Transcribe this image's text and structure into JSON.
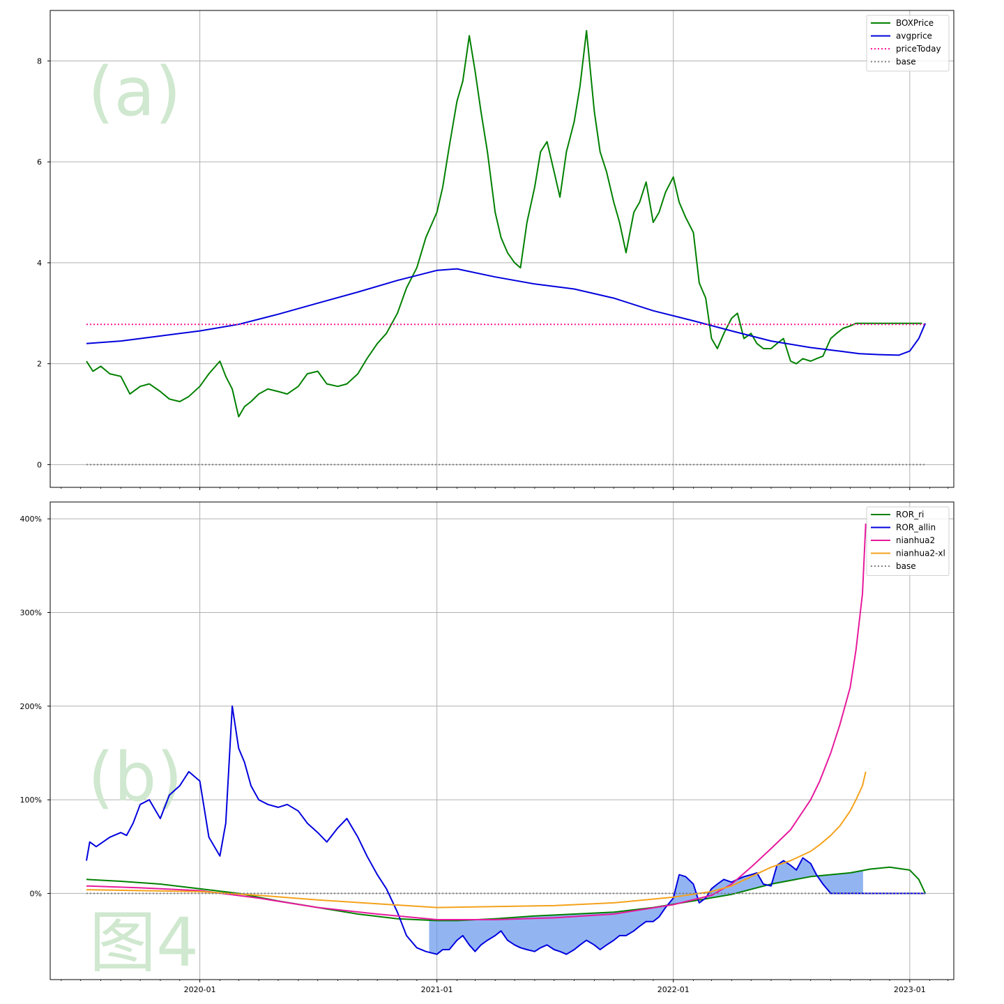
{
  "chart_data": [
    {
      "panel_label": "(a)",
      "type": "line",
      "ylim": [
        -0.45,
        9.0
      ],
      "yticks": [
        0,
        2,
        4,
        6,
        8
      ],
      "grid": true,
      "legend_position": "top-right",
      "series": [
        {
          "name": "BOXPrice",
          "color": "#008000",
          "style": "solid",
          "x": [
            "2019-07-10",
            "2019-07-20",
            "2019-08-01",
            "2019-08-15",
            "2019-09-01",
            "2019-09-15",
            "2019-10-01",
            "2019-10-15",
            "2019-11-01",
            "2019-11-15",
            "2019-12-01",
            "2019-12-15",
            "2020-01-01",
            "2020-01-15",
            "2020-02-01",
            "2020-02-10",
            "2020-02-20",
            "2020-03-01",
            "2020-03-10",
            "2020-03-20",
            "2020-04-01",
            "2020-04-15",
            "2020-05-01",
            "2020-05-15",
            "2020-06-01",
            "2020-06-15",
            "2020-07-01",
            "2020-07-15",
            "2020-08-01",
            "2020-08-15",
            "2020-09-01",
            "2020-09-15",
            "2020-10-01",
            "2020-10-15",
            "2020-11-01",
            "2020-11-15",
            "2020-12-01",
            "2020-12-15",
            "2021-01-01",
            "2021-01-10",
            "2021-01-20",
            "2021-02-01",
            "2021-02-10",
            "2021-02-20",
            "2021-03-01",
            "2021-03-10",
            "2021-03-20",
            "2021-04-01",
            "2021-04-10",
            "2021-04-20",
            "2021-05-01",
            "2021-05-10",
            "2021-05-20",
            "2021-06-01",
            "2021-06-10",
            "2021-06-20",
            "2021-07-01",
            "2021-07-10",
            "2021-07-20",
            "2021-08-01",
            "2021-08-10",
            "2021-08-20",
            "2021-09-01",
            "2021-09-10",
            "2021-09-20",
            "2021-10-01",
            "2021-10-10",
            "2021-10-20",
            "2021-11-01",
            "2021-11-10",
            "2021-11-20",
            "2021-12-01",
            "2021-12-10",
            "2021-12-20",
            "2022-01-01",
            "2022-01-10",
            "2022-01-20",
            "2022-02-01",
            "2022-02-10",
            "2022-02-20",
            "2022-03-01",
            "2022-03-10",
            "2022-03-20",
            "2022-04-01",
            "2022-04-10",
            "2022-04-20",
            "2022-05-01",
            "2022-05-10",
            "2022-05-20",
            "2022-06-01",
            "2022-06-10",
            "2022-06-20",
            "2022-07-01",
            "2022-07-10",
            "2022-07-20",
            "2022-08-01",
            "2022-08-10",
            "2022-08-20",
            "2022-09-01",
            "2022-09-10",
            "2022-09-20",
            "2022-10-01",
            "2022-10-10",
            "2022-10-20",
            "2022-11-01",
            "2022-11-10",
            "2022-11-20",
            "2022-12-01",
            "2022-12-10",
            "2022-12-20",
            "2023-01-01",
            "2023-01-10",
            "2023-01-20"
          ],
          "y": [
            2.05,
            1.85,
            1.95,
            1.8,
            1.75,
            1.4,
            1.55,
            1.6,
            1.45,
            1.3,
            1.25,
            1.35,
            1.55,
            1.8,
            2.05,
            1.75,
            1.5,
            0.95,
            1.15,
            1.25,
            1.4,
            1.5,
            1.45,
            1.4,
            1.55,
            1.8,
            1.85,
            1.6,
            1.55,
            1.6,
            1.8,
            2.1,
            2.4,
            2.6,
            3.0,
            3.5,
            3.9,
            4.5,
            5.0,
            5.5,
            6.3,
            7.2,
            7.6,
            8.5,
            7.8,
            7.0,
            6.2,
            5.0,
            4.5,
            4.2,
            4.0,
            3.9,
            4.8,
            5.5,
            6.2,
            6.4,
            5.8,
            5.3,
            6.2,
            6.8,
            7.5,
            8.6,
            7.0,
            6.2,
            5.8,
            5.2,
            4.8,
            4.2,
            5.0,
            5.2,
            5.6,
            4.8,
            5.0,
            5.4,
            5.7,
            5.2,
            4.9,
            4.6,
            3.6,
            3.3,
            2.5,
            2.3,
            2.6,
            2.9,
            3.0,
            2.5,
            2.6,
            2.4,
            2.3,
            2.3,
            2.4,
            2.5,
            2.05,
            2.0,
            2.1,
            2.05,
            2.1,
            2.15,
            2.5,
            2.6,
            2.7,
            2.75,
            2.8,
            2.8,
            2.8,
            2.8,
            2.8,
            2.8,
            2.8,
            2.8,
            2.8,
            2.8,
            2.8
          ]
        },
        {
          "name": "avgprice",
          "color": "#0000dd",
          "style": "solid",
          "x": [
            "2019-07-10",
            "2019-09-01",
            "2019-11-01",
            "2020-01-01",
            "2020-03-01",
            "2020-05-01",
            "2020-07-01",
            "2020-09-01",
            "2020-11-01",
            "2021-01-01",
            "2021-02-01",
            "2021-04-01",
            "2021-06-01",
            "2021-08-01",
            "2021-10-01",
            "2021-12-01",
            "2022-02-01",
            "2022-04-01",
            "2022-06-01",
            "2022-08-01",
            "2022-09-15",
            "2022-10-15",
            "2022-11-15",
            "2022-12-15",
            "2023-01-01",
            "2023-01-15",
            "2023-01-25"
          ],
          "y": [
            2.4,
            2.45,
            2.55,
            2.65,
            2.78,
            2.98,
            3.2,
            3.42,
            3.65,
            3.85,
            3.88,
            3.72,
            3.58,
            3.48,
            3.3,
            3.05,
            2.85,
            2.65,
            2.45,
            2.32,
            2.25,
            2.2,
            2.18,
            2.17,
            2.25,
            2.5,
            2.8
          ]
        },
        {
          "name": "priceToday",
          "color": "#ff1493",
          "style": "dotted",
          "x": [
            "2019-07-10",
            "2023-01-25"
          ],
          "y": [
            2.78,
            2.78
          ]
        },
        {
          "name": "base",
          "color": "#808080",
          "style": "dotted",
          "x": [
            "2019-07-10",
            "2023-01-25"
          ],
          "y": [
            0,
            0
          ]
        }
      ]
    },
    {
      "panel_label": "(b)",
      "type": "line",
      "ylim": [
        -92,
        418
      ],
      "yticks": [
        0,
        100,
        200,
        300,
        400
      ],
      "ytick_labels": [
        "0%",
        "100%",
        "200%",
        "300%",
        "400%"
      ],
      "grid": true,
      "legend_position": "top-right",
      "xticks": [
        "2020-01-01",
        "2021-01-01",
        "2022-01-01",
        "2023-01-01"
      ],
      "xtick_labels": [
        "2020-01",
        "2021-01",
        "2022-01",
        "2023-01"
      ],
      "fill_between": {
        "series_a": "ROR_ri",
        "series_b": "ROR_allin",
        "x_from": "2020-12-20",
        "x_to": "2022-10-25",
        "color": "#6495ed",
        "opacity": 0.7
      },
      "series": [
        {
          "name": "ROR_ri",
          "color": "#008000",
          "style": "solid",
          "x": [
            "2019-07-10",
            "2019-09-01",
            "2019-11-01",
            "2020-01-01",
            "2020-03-01",
            "2020-05-01",
            "2020-07-01",
            "2020-09-01",
            "2020-11-01",
            "2021-01-01",
            "2021-02-01",
            "2021-04-01",
            "2021-06-01",
            "2021-08-01",
            "2021-10-01",
            "2021-12-01",
            "2022-02-01",
            "2022-04-01",
            "2022-06-01",
            "2022-08-01",
            "2022-10-01",
            "2022-11-01",
            "2022-12-01",
            "2023-01-01",
            "2023-01-15",
            "2023-01-25"
          ],
          "y": [
            15,
            13,
            10,
            5,
            0,
            -8,
            -15,
            -22,
            -27,
            -29,
            -29,
            -27,
            -24,
            -22,
            -20,
            -15,
            -8,
            -1,
            10,
            18,
            22,
            26,
            28,
            25,
            15,
            0
          ]
        },
        {
          "name": "ROR_allin",
          "color": "#0000dd",
          "style": "solid",
          "x": [
            "2019-07-10",
            "2019-07-15",
            "2019-07-25",
            "2019-08-15",
            "2019-09-01",
            "2019-09-10",
            "2019-09-20",
            "2019-10-01",
            "2019-10-15",
            "2019-11-01",
            "2019-11-15",
            "2019-12-01",
            "2019-12-15",
            "2020-01-01",
            "2020-01-15",
            "2020-02-01",
            "2020-02-10",
            "2020-02-20",
            "2020-03-01",
            "2020-03-10",
            "2020-03-20",
            "2020-04-01",
            "2020-04-15",
            "2020-05-01",
            "2020-05-15",
            "2020-06-01",
            "2020-06-15",
            "2020-07-01",
            "2020-07-15",
            "2020-08-01",
            "2020-08-15",
            "2020-09-01",
            "2020-09-15",
            "2020-10-01",
            "2020-10-15",
            "2020-11-01",
            "2020-11-15",
            "2020-12-01",
            "2020-12-15",
            "2021-01-01",
            "2021-01-10",
            "2021-01-20",
            "2021-02-01",
            "2021-02-10",
            "2021-02-20",
            "2021-03-01",
            "2021-03-10",
            "2021-03-20",
            "2021-04-01",
            "2021-04-10",
            "2021-04-20",
            "2021-05-01",
            "2021-05-10",
            "2021-05-20",
            "2021-06-01",
            "2021-06-10",
            "2021-06-20",
            "2021-07-01",
            "2021-07-10",
            "2021-07-20",
            "2021-08-01",
            "2021-08-10",
            "2021-08-20",
            "2021-09-01",
            "2021-09-10",
            "2021-09-20",
            "2021-10-01",
            "2021-10-10",
            "2021-10-20",
            "2021-11-01",
            "2021-11-10",
            "2021-11-20",
            "2021-12-01",
            "2021-12-10",
            "2021-12-20",
            "2022-01-01",
            "2022-01-10",
            "2022-01-20",
            "2022-02-01",
            "2022-02-10",
            "2022-02-20",
            "2022-03-01",
            "2022-03-10",
            "2022-03-20",
            "2022-04-01",
            "2022-04-10",
            "2022-04-20",
            "2022-05-01",
            "2022-05-10",
            "2022-05-20",
            "2022-06-01",
            "2022-06-10",
            "2022-06-20",
            "2022-07-01",
            "2022-07-10",
            "2022-07-20",
            "2022-08-01",
            "2022-08-10",
            "2022-08-20",
            "2022-09-01",
            "2022-09-10",
            "2022-09-20",
            "2022-10-01",
            "2022-10-10",
            "2022-10-20",
            "2022-11-01",
            "2022-11-10",
            "2022-11-20",
            "2022-12-01",
            "2022-12-10",
            "2022-12-20",
            "2023-01-01",
            "2023-01-10",
            "2023-01-20",
            "2023-01-25"
          ],
          "y": [
            35,
            55,
            50,
            60,
            65,
            62,
            75,
            95,
            100,
            80,
            105,
            115,
            130,
            120,
            60,
            40,
            75,
            200,
            155,
            140,
            115,
            100,
            95,
            92,
            95,
            88,
            75,
            65,
            55,
            70,
            80,
            60,
            40,
            20,
            5,
            -20,
            -45,
            -58,
            -62,
            -65,
            -60,
            -60,
            -50,
            -45,
            -55,
            -62,
            -55,
            -50,
            -45,
            -40,
            -50,
            -55,
            -58,
            -60,
            -62,
            -58,
            -55,
            -60,
            -62,
            -65,
            -60,
            -55,
            -50,
            -55,
            -60,
            -55,
            -50,
            -45,
            -45,
            -40,
            -35,
            -30,
            -30,
            -25,
            -15,
            -5,
            20,
            18,
            10,
            -10,
            -5,
            5,
            10,
            15,
            12,
            15,
            18,
            20,
            22,
            10,
            8,
            30,
            35,
            30,
            25,
            38,
            32,
            20,
            10,
            0,
            0,
            0,
            0,
            0,
            0,
            0,
            0,
            0,
            0,
            0,
            0,
            0,
            0,
            0,
            0
          ]
        },
        {
          "name": "nianhua2",
          "color": "#e6199c",
          "style": "solid",
          "x": [
            "2019-07-10",
            "2019-10-01",
            "2020-01-01",
            "2020-04-01",
            "2020-07-01",
            "2020-10-01",
            "2021-01-01",
            "2021-04-01",
            "2021-07-01",
            "2021-10-01",
            "2022-01-01",
            "2022-03-01",
            "2022-04-01",
            "2022-05-01",
            "2022-06-01",
            "2022-07-01",
            "2022-08-01",
            "2022-08-15",
            "2022-09-01",
            "2022-09-15",
            "2022-10-01",
            "2022-10-10",
            "2022-10-20",
            "2022-10-25"
          ],
          "y": [
            8,
            6,
            3,
            -5,
            -15,
            -22,
            -28,
            -28,
            -26,
            -22,
            -12,
            -2,
            10,
            28,
            48,
            68,
            100,
            120,
            150,
            180,
            220,
            260,
            320,
            395
          ]
        },
        {
          "name": "nianhua2-xl",
          "color": "#f5a21b",
          "style": "solid",
          "x": [
            "2019-07-10",
            "2019-10-01",
            "2020-01-01",
            "2020-04-01",
            "2020-07-01",
            "2020-10-01",
            "2021-01-01",
            "2021-04-01",
            "2021-07-01",
            "2021-10-01",
            "2022-01-01",
            "2022-03-01",
            "2022-04-01",
            "2022-05-01",
            "2022-06-01",
            "2022-07-01",
            "2022-08-01",
            "2022-08-15",
            "2022-09-01",
            "2022-09-15",
            "2022-10-01",
            "2022-10-10",
            "2022-10-20",
            "2022-10-25"
          ],
          "y": [
            4,
            3,
            2,
            -2,
            -7,
            -11,
            -15,
            -14,
            -13,
            -10,
            -4,
            2,
            8,
            18,
            28,
            35,
            45,
            52,
            62,
            72,
            88,
            100,
            115,
            130
          ]
        },
        {
          "name": "base",
          "color": "#808080",
          "style": "dotted",
          "x": [
            "2019-07-10",
            "2023-01-25"
          ],
          "y": [
            0,
            0
          ]
        }
      ]
    }
  ],
  "figure_caption": "图4",
  "colors": {
    "watermark": "#cfe8cf",
    "grid": "#b0b0b0"
  }
}
